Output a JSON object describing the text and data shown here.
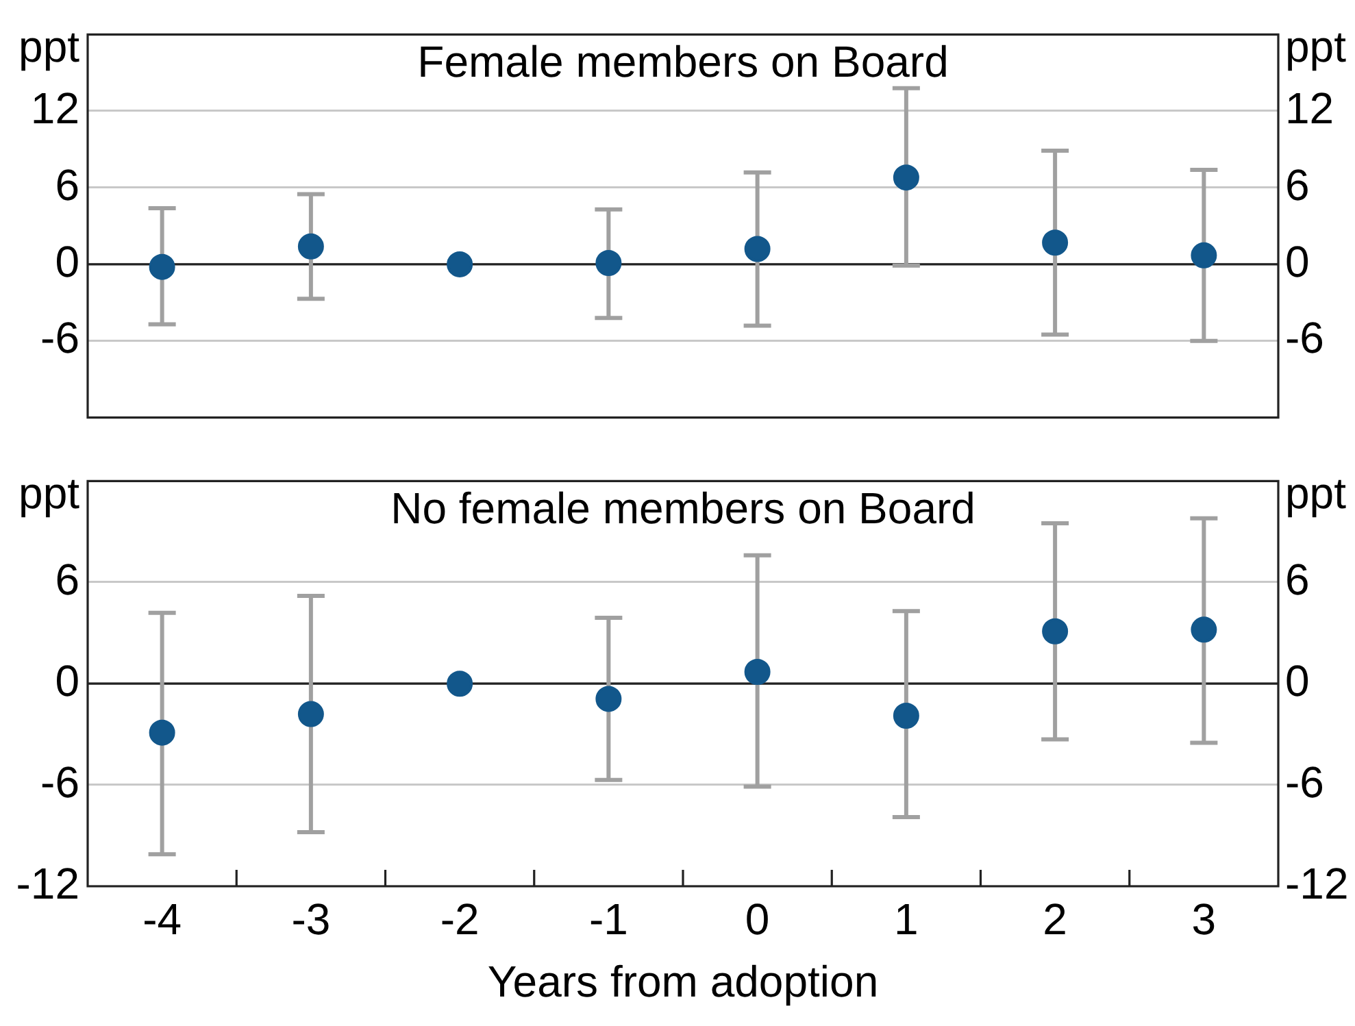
{
  "chart_data": [
    {
      "type": "scatter",
      "title": "Female members on Board",
      "ylabel": "ppt",
      "y2label": "ppt",
      "categories": [
        "-4",
        "-3",
        "-2",
        "-1",
        "0",
        "1",
        "2",
        "3"
      ],
      "values": [
        -0.2,
        1.4,
        0,
        0.1,
        1.2,
        6.8,
        1.7,
        0.7
      ],
      "errors": [
        [
          -4.7,
          4.4
        ],
        [
          -2.7,
          5.5
        ],
        null,
        [
          -4.2,
          4.3
        ],
        [
          -4.8,
          7.2
        ],
        [
          -0.1,
          13.8
        ],
        [
          -5.5,
          8.9
        ],
        [
          -6.0,
          7.4
        ]
      ],
      "color": "#12578b",
      "marker": "circle",
      "ylim": [
        -12,
        18
      ],
      "yticks": [
        -6,
        0,
        6,
        12
      ],
      "y2lim": [
        -12,
        18
      ],
      "y2ticks": [
        -6,
        0,
        6,
        12
      ],
      "ref_lines": [
        {
          "axis": "y",
          "value": 0,
          "color": "#222222"
        }
      ],
      "grid": "y",
      "legend": false,
      "tick_labels": "y"
    },
    {
      "type": "scatter",
      "title": "No female members on Board",
      "xlabel": "Years from adoption",
      "ylabel": "ppt",
      "y2label": "ppt",
      "categories": [
        "-4",
        "-3",
        "-2",
        "-1",
        "0",
        "1",
        "2",
        "3"
      ],
      "values": [
        -2.9,
        -1.8,
        0,
        -0.9,
        0.7,
        -1.9,
        3.1,
        3.2
      ],
      "errors": [
        [
          -10.1,
          4.2
        ],
        [
          -8.8,
          5.2
        ],
        null,
        [
          -5.7,
          3.9
        ],
        [
          -6.1,
          7.6
        ],
        [
          -7.9,
          4.3
        ],
        [
          -3.3,
          9.5
        ],
        [
          -3.5,
          9.8
        ]
      ],
      "color": "#12578b",
      "marker": "circle",
      "ylim": [
        -12,
        12
      ],
      "yticks": [
        -12,
        -6,
        0,
        6
      ],
      "y2lim": [
        -12,
        12
      ],
      "y2ticks": [
        -12,
        -6,
        0,
        6
      ],
      "ref_lines": [
        {
          "axis": "y",
          "value": 0,
          "color": "#222222"
        }
      ],
      "grid": "y",
      "legend": false
    }
  ]
}
